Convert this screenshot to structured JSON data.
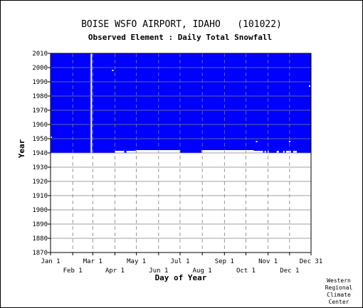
{
  "chart_data": {
    "type": "heatmap",
    "title": "BOISE WSFO AIRPORT, IDAHO   (101022)",
    "subtitle": "Observed Element : Daily Total Snowfall",
    "xlabel": "Day of Year",
    "ylabel": "Year",
    "ylim": [
      1870,
      2010
    ],
    "yticks": [
      2010,
      2000,
      1990,
      1980,
      1970,
      1960,
      1950,
      1940,
      1930,
      1920,
      1910,
      1900,
      1890,
      1880,
      1870
    ],
    "xlim": [
      1,
      365
    ],
    "xticks_top_row": [
      {
        "label": "Jan 1",
        "day": 1
      },
      {
        "label": "Mar 1",
        "day": 60
      },
      {
        "label": "May 1",
        "day": 121
      },
      {
        "label": "Jul 1",
        "day": 182
      },
      {
        "label": "Sep 1",
        "day": 244
      },
      {
        "label": "Nov 1",
        "day": 305
      },
      {
        "label": "Dec 31",
        "day": 365
      }
    ],
    "xticks_bottom_row": [
      {
        "label": "Feb 1",
        "day": 32
      },
      {
        "label": "Apr 1",
        "day": 91
      },
      {
        "label": "Jun 1",
        "day": 152
      },
      {
        "label": "Aug 1",
        "day": 213
      },
      {
        "label": "Oct 1",
        "day": 274
      },
      {
        "label": "Dec 1",
        "day": 335
      }
    ],
    "data_coverage": {
      "year_start": 1940,
      "year_end": 2010,
      "color": "#0000ff"
    },
    "gaps": [
      {
        "day_start": 57,
        "day_end": 59,
        "year_start": 1940,
        "year_end": 2010
      },
      {
        "day_start": 91,
        "day_end": 104,
        "year_start": 1940,
        "year_end": 1941.5
      },
      {
        "day_start": 107,
        "day_end": 120,
        "year_start": 1940,
        "year_end": 1941.5
      },
      {
        "day_start": 120,
        "day_end": 182,
        "year_start": 1940,
        "year_end": 1942
      },
      {
        "day_start": 212,
        "day_end": 285,
        "year_start": 1940,
        "year_end": 1942
      },
      {
        "day_start": 285,
        "day_end": 298,
        "year_start": 1940,
        "year_end": 1941.5
      },
      {
        "day_start": 300,
        "day_end": 302,
        "year_start": 1940,
        "year_end": 1941.5
      },
      {
        "day_start": 304,
        "day_end": 306,
        "year_start": 1940,
        "year_end": 1941.5
      },
      {
        "day_start": 317,
        "day_end": 320,
        "year_start": 1940,
        "year_end": 1941.5
      },
      {
        "day_start": 326,
        "day_end": 328,
        "year_start": 1940,
        "year_end": 1941.5
      },
      {
        "day_start": 330,
        "day_end": 337,
        "year_start": 1940,
        "year_end": 1941.5
      },
      {
        "day_start": 340,
        "day_end": 345,
        "year_start": 1940,
        "year_end": 1941.5
      }
    ],
    "specks": [
      {
        "day": 2,
        "year": 1951
      },
      {
        "day": 88,
        "year": 1998
      },
      {
        "day": 289,
        "year": 1948
      },
      {
        "day": 335,
        "year": 1948
      },
      {
        "day": 363,
        "year": 1987
      }
    ],
    "grid": true,
    "colors": {
      "data": "#0000ff",
      "grid": "#808080",
      "background": "#ffffff"
    }
  },
  "credit": [
    "Western",
    "Regional",
    "Climate",
    "Center"
  ]
}
